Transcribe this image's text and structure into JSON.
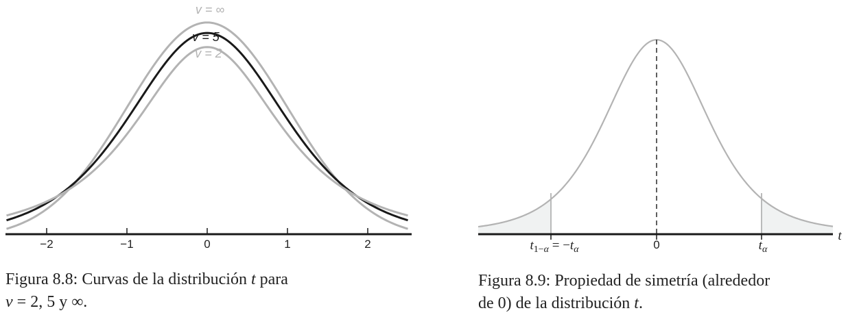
{
  "figures": [
    {
      "caption": {
        "label": "Figura 8.8:",
        "text_before": "Curvas de la distribución",
        "var_t": "t",
        "text_after": "para",
        "line2_var": "v",
        "line2_text": "= 2, 5 y ∞."
      },
      "curve_labels": {
        "inf": "v = ∞",
        "five": "v = 5",
        "two": "v = 2"
      },
      "colors": {
        "gray": "#b3b3b3",
        "black": "#1a1a1a"
      }
    },
    {
      "caption": {
        "label": "Figura 8.9:",
        "text_line1": "Propiedad de simetría (alrededor",
        "text_line2_before": "de 0) de la distribución",
        "var_t": "t",
        "text_line2_after": "."
      },
      "axis_var": "t",
      "colors": {
        "curve": "#b3b3b3",
        "shade": "#f0f2f2"
      }
    }
  ],
  "chart_data": [
    {
      "type": "line",
      "title": "",
      "xlabel": "",
      "ylabel": "",
      "xlim": [
        -2.5,
        2.5
      ],
      "xticks": [
        -2,
        -1,
        0,
        1,
        2
      ],
      "xtick_labels": [
        "−2",
        "−1",
        "0",
        "1",
        "2"
      ],
      "series": [
        {
          "name": "v = ∞",
          "df": null,
          "color": "#b3b3b3"
        },
        {
          "name": "v = 5",
          "df": 5,
          "color": "#1a1a1a"
        },
        {
          "name": "v = 2",
          "df": 2,
          "color": "#b3b3b3"
        }
      ]
    },
    {
      "type": "area",
      "title": "",
      "xlabel": "t",
      "ylabel": "",
      "xtick_labels": [
        "t1−α = −tα",
        "0",
        "tα"
      ],
      "series": [
        {
          "name": "",
          "distribution": "t",
          "symmetric_about": 0
        }
      ],
      "shaded_tails": [
        "left",
        "right"
      ]
    }
  ]
}
